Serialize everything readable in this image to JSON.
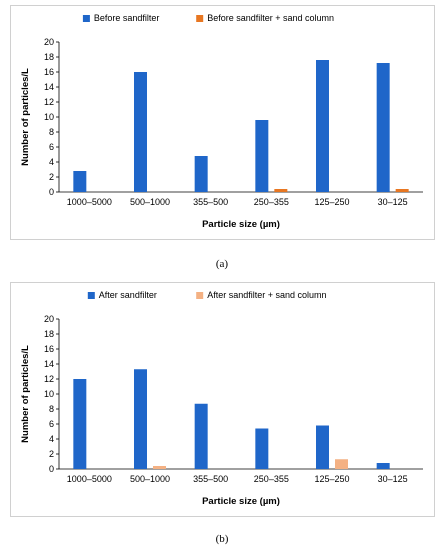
{
  "colors": {
    "blue": "#1f66c9",
    "orange": "#e87722",
    "light_orange": "#f4b183",
    "axis": "#000000"
  },
  "chart_data": [
    {
      "type": "bar",
      "panel_label": "(a)",
      "categories": [
        "1000–5000",
        "500–1000",
        "355–500",
        "250–355",
        "125–250",
        "30–125"
      ],
      "series": [
        {
          "name": "Before sandfilter",
          "color": "#1f66c9",
          "values": [
            2.8,
            16.0,
            4.8,
            9.6,
            17.6,
            17.2
          ]
        },
        {
          "name": "Before sandfilter + sand column",
          "color": "#e87722",
          "values": [
            0,
            0,
            0,
            0.4,
            0,
            0.4
          ]
        }
      ],
      "xlabel": "Particle size (µm)",
      "ylabel": "Number of particles/L",
      "ylim": [
        0,
        20
      ],
      "yticks": [
        0,
        2,
        4,
        6,
        8,
        10,
        12,
        14,
        16,
        18,
        20
      ],
      "grid": false,
      "legend_position": "top"
    },
    {
      "type": "bar",
      "panel_label": "(b)",
      "categories": [
        "1000–5000",
        "500–1000",
        "355–500",
        "250–355",
        "125–250",
        "30–125"
      ],
      "series": [
        {
          "name": "After sandfilter",
          "color": "#1f66c9",
          "values": [
            12.0,
            13.3,
            8.7,
            5.4,
            5.8,
            0.8
          ]
        },
        {
          "name": "After sandfilter + sand column",
          "color": "#f4b183",
          "values": [
            0,
            0.4,
            0,
            0,
            1.3,
            0
          ]
        }
      ],
      "xlabel": "Particle size (µm)",
      "ylabel": "Number of particles/L",
      "ylim": [
        0,
        20
      ],
      "yticks": [
        0,
        2,
        4,
        6,
        8,
        10,
        12,
        14,
        16,
        18,
        20
      ],
      "grid": false,
      "legend_position": "top"
    }
  ]
}
